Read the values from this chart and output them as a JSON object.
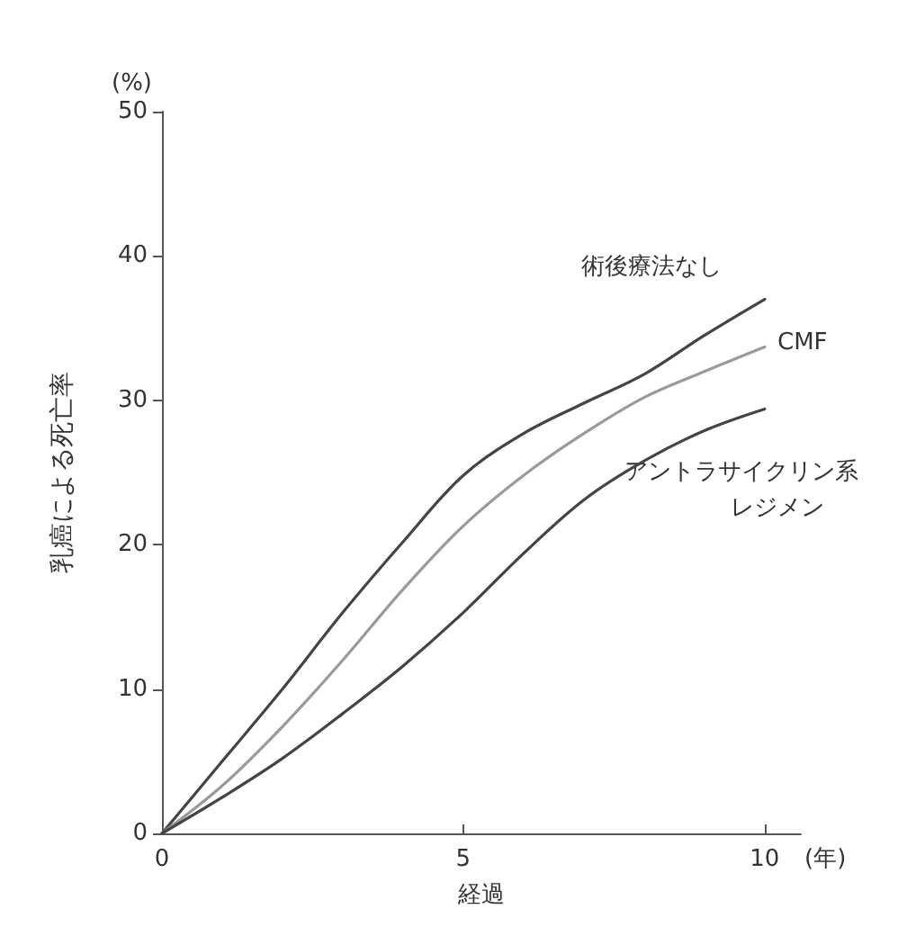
{
  "chart_data": {
    "type": "line",
    "xlabel": "経過",
    "ylabel": "乳癌による死亡率",
    "x": [
      0,
      1,
      2,
      3,
      4,
      5,
      6,
      7,
      8,
      9,
      10
    ],
    "series": [
      {
        "color": "#444444",
        "values": [
          0,
          5,
          10,
          15.3,
          20.2,
          24.8,
          27.7,
          29.8,
          31.8,
          34.5,
          37
        ]
      },
      {
        "color": "#9a9a9a",
        "values": [
          0,
          3.3,
          7.4,
          12,
          16.9,
          21.3,
          24.8,
          27.7,
          30.2,
          32,
          33.7
        ]
      },
      {
        "color": "#444444",
        "values": [
          0,
          2.5,
          5.2,
          8.3,
          11.6,
          15.3,
          19.4,
          23.1,
          25.8,
          27.9,
          29.4
        ]
      }
    ],
    "xlim": [
      0,
      10.6
    ],
    "xticks": [
      0,
      5,
      10
    ],
    "ylim": [
      0,
      50
    ],
    "yticks": [
      0,
      10,
      20,
      30,
      40,
      50
    ],
    "grid": false,
    "marker": "none",
    "line_style": "solid",
    "annotations": [
      "(%)",
      "(年)",
      "術後療法なし",
      "CMF",
      "アントラサイクリン系",
      "レジメン"
    ]
  }
}
